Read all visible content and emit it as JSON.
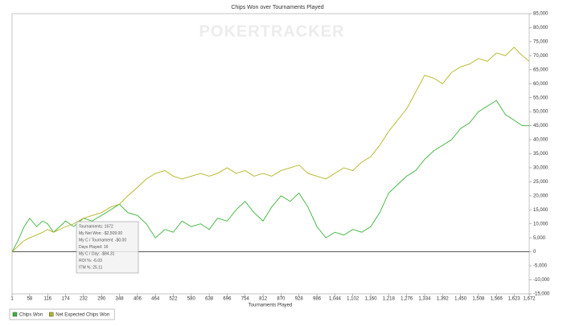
{
  "chart_data": {
    "type": "line",
    "title": "Chips Won over Tournaments Played",
    "watermark": "POKERTRACKER",
    "xlabel": "Tournaments Played",
    "legend": "bottom-left",
    "x": [
      1,
      20,
      40,
      58,
      80,
      100,
      116,
      135,
      155,
      174,
      200,
      232,
      260,
      290,
      320,
      348,
      375,
      406,
      435,
      464,
      495,
      522,
      550,
      580,
      610,
      638,
      665,
      696,
      725,
      754,
      783,
      812,
      840,
      870,
      900,
      928,
      957,
      986,
      1015,
      1044,
      1073,
      1102,
      1131,
      1160,
      1189,
      1218,
      1247,
      1276,
      1305,
      1334,
      1363,
      1392,
      1421,
      1450,
      1479,
      1508,
      1537,
      1566,
      1595,
      1623,
      1650,
      1672
    ],
    "series": [
      {
        "name": "Chips Won",
        "color": "#3cb43c",
        "values": [
          0,
          4000,
          9000,
          12000,
          9000,
          11000,
          10000,
          7000,
          9000,
          11000,
          9000,
          12000,
          11000,
          13000,
          15000,
          17000,
          14000,
          13000,
          10000,
          5000,
          8000,
          7000,
          11000,
          9000,
          10000,
          8000,
          12000,
          11000,
          15000,
          18000,
          14000,
          11000,
          16000,
          20000,
          18000,
          21000,
          16000,
          9000,
          5000,
          7000,
          6000,
          8000,
          7000,
          9000,
          14000,
          21000,
          24000,
          27000,
          29000,
          33000,
          36000,
          38000,
          40000,
          44000,
          46000,
          50000,
          52000,
          54000,
          49000,
          47000,
          45000,
          45000
        ]
      },
      {
        "name": "Net Expected Chips Won",
        "color": "#b4b423",
        "values": [
          0,
          2000,
          4000,
          5000,
          6000,
          7000,
          8000,
          7000,
          8000,
          9000,
          10000,
          12000,
          13000,
          14000,
          16000,
          17000,
          20000,
          23000,
          26000,
          28000,
          29000,
          27000,
          26000,
          27000,
          28000,
          27000,
          28000,
          30000,
          28000,
          29000,
          27000,
          28000,
          27000,
          29000,
          30000,
          31000,
          28000,
          27000,
          26000,
          28000,
          30000,
          29000,
          32000,
          34000,
          38000,
          43000,
          47000,
          51000,
          57000,
          63000,
          62000,
          60000,
          64000,
          66000,
          67000,
          69000,
          68000,
          71000,
          70000,
          73000,
          70000,
          68000
        ]
      }
    ],
    "xlim": [
      1,
      1672
    ],
    "xticks": [
      1,
      58,
      116,
      174,
      232,
      290,
      348,
      406,
      464,
      522,
      580,
      638,
      696,
      754,
      812,
      870,
      928,
      986,
      {
        "value": 1044,
        "label": "1,044"
      },
      {
        "value": 1102,
        "label": "1,102"
      },
      {
        "value": 1160,
        "label": "1,160"
      },
      {
        "value": 1218,
        "label": "1,218"
      },
      {
        "value": 1276,
        "label": "1,276"
      },
      {
        "value": 1334,
        "label": "1,334"
      },
      {
        "value": 1392,
        "label": "1,392"
      },
      {
        "value": 1450,
        "label": "1,450"
      },
      {
        "value": 1508,
        "label": "1,508"
      },
      {
        "value": 1566,
        "label": "1,566"
      },
      {
        "value": 1623,
        "label": "1,623"
      },
      {
        "value": 1672,
        "label": "1,672"
      }
    ],
    "ylim": [
      -15000,
      85000
    ],
    "yticks": [
      {
        "value": -15000,
        "label": "-15,000"
      },
      {
        "value": -10000,
        "label": "-10,000"
      },
      {
        "value": -5000,
        "label": "-5,000"
      },
      0,
      {
        "value": 5000,
        "label": "5,000"
      },
      {
        "value": 10000,
        "label": "10,000"
      },
      {
        "value": 15000,
        "label": "15,000"
      },
      {
        "value": 20000,
        "label": "20,000"
      },
      {
        "value": 25000,
        "label": "25,000"
      },
      {
        "value": 30000,
        "label": "30,000"
      },
      {
        "value": 35000,
        "label": "35,000"
      },
      {
        "value": 40000,
        "label": "40,000"
      },
      {
        "value": 45000,
        "label": "45,000"
      },
      {
        "value": 50000,
        "label": "50,000"
      },
      {
        "value": 55000,
        "label": "55,000"
      },
      {
        "value": 60000,
        "label": "60,000"
      },
      {
        "value": 65000,
        "label": "65,000"
      },
      {
        "value": 70000,
        "label": "70,000"
      },
      {
        "value": 75000,
        "label": "75,000"
      },
      {
        "value": 80000,
        "label": "80,000"
      },
      {
        "value": 85000,
        "label": "85,000"
      }
    ],
    "tooltip": [
      "Tournaments: 1672",
      "My Net Won: -$2,509.00",
      "My C / Tournament: -$0.00",
      "Days Played: 16",
      "My C / Day: -$84.31",
      "ROI %: -6.03",
      "ITM %: 25.11"
    ]
  }
}
